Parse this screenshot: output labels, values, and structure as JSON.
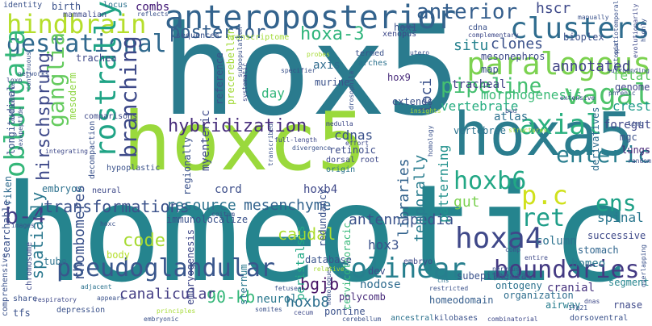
{
  "words": [
    {
      "text": "hox5",
      "color": "#2a7b8e"
    },
    {
      "text": "homeotic",
      "color": "#25848e"
    },
    {
      "text": "hoxc5",
      "color": "#9ad93c"
    },
    {
      "text": "hoxa5",
      "color": "#2b7d8e"
    },
    {
      "text": "anteroposterior",
      "color": "#33638d"
    },
    {
      "text": "paralogous",
      "color": "#7cd250"
    },
    {
      "text": "hindbrain",
      "color": "#b5de2b"
    },
    {
      "text": "clusters",
      "color": "#2f6c8e"
    },
    {
      "text": "gestational",
      "color": "#30698e"
    },
    {
      "text": "oblongata",
      "color": "#35b779"
    },
    {
      "text": "rostrally",
      "color": "#20a486"
    },
    {
      "text": "vagal",
      "color": "#4ec36b"
    },
    {
      "text": "axial",
      "color": "#2ab07f"
    },
    {
      "text": "enteric",
      "color": "#287d8e"
    },
    {
      "text": "p.c",
      "color": "#d0e11c"
    },
    {
      "text": "colinear",
      "color": "#277f8e"
    },
    {
      "text": "boundaries",
      "color": "#443a83"
    },
    {
      "text": "pseudoglandular",
      "color": "#39568c"
    },
    {
      "text": "hoxa-3",
      "color": "#2fb47c"
    },
    {
      "text": "anterior",
      "color": "#355f8d"
    },
    {
      "text": "posterior",
      "color": "#355f8d"
    },
    {
      "text": "hoxa4",
      "color": "#3f4889"
    },
    {
      "text": "ganglia",
      "color": "#65cb5e"
    },
    {
      "text": "branching",
      "color": "#3e4a89"
    },
    {
      "text": "hoxb6",
      "color": "#22a785"
    },
    {
      "text": "pipeline",
      "color": "#44bf70"
    },
    {
      "text": "ens",
      "color": "#1fa187"
    },
    {
      "text": "ret",
      "color": "#1f9e89"
    },
    {
      "text": "b-4",
      "color": "#433e85"
    },
    {
      "text": "transformations",
      "color": "#3b528b"
    },
    {
      "text": "mesenchyme",
      "color": "#33638d"
    },
    {
      "text": "antennapedia",
      "color": "#3b528b"
    },
    {
      "text": "resource",
      "color": "#2c728e"
    },
    {
      "text": "hybridization",
      "color": "#472d7b"
    },
    {
      "text": "hirschsprung",
      "color": "#3e4989"
    },
    {
      "text": "caudal",
      "color": "#addc30"
    },
    {
      "text": "code",
      "color": "#a8db34"
    },
    {
      "text": "spatially",
      "color": "#2a788e"
    },
    {
      "text": "bgjb",
      "color": "#471365"
    },
    {
      "text": "90-kb",
      "color": "#35b779"
    },
    {
      "text": "canalicular",
      "color": "#433d84"
    },
    {
      "text": "rhombomeres",
      "color": "#3b528b"
    },
    {
      "text": "libraries",
      "color": "#33638d"
    },
    {
      "text": "temporally",
      "color": "#287c8e"
    },
    {
      "text": "patterning",
      "color": "#21918c"
    },
    {
      "text": "annotated",
      "color": "#414487"
    },
    {
      "text": "morphogenesis",
      "color": "#3aba76"
    },
    {
      "text": "vertebrate",
      "color": "#27ad81"
    },
    {
      "text": "crest",
      "color": "#1e9b8a"
    },
    {
      "text": "spinal",
      "color": "#2a778e"
    },
    {
      "text": "clones",
      "color": "#3b528b"
    },
    {
      "text": "situ",
      "color": "#26828e"
    },
    {
      "text": "hscr",
      "color": "#3e4989"
    },
    {
      "text": "fetal",
      "color": "#5ec962"
    },
    {
      "text": "genome",
      "color": "#414487"
    },
    {
      "text": "foregut",
      "color": "#3f4788"
    },
    {
      "text": "tracheal",
      "color": "#424086"
    },
    {
      "text": "hox9",
      "color": "#472a7a"
    },
    {
      "text": "loci",
      "color": "#3b528b"
    },
    {
      "text": "gut",
      "color": "#7ad151"
    },
    {
      "text": "hox3",
      "color": "#3b528b"
    },
    {
      "text": "column",
      "color": "#2c728e"
    },
    {
      "text": "homeo",
      "color": "#2a788e"
    },
    {
      "text": "segment",
      "color": "#25858e"
    },
    {
      "text": "embryos",
      "color": "#2d718e"
    },
    {
      "text": "riken",
      "color": "#2f6b8e"
    },
    {
      "text": "longitudinal",
      "color": "#3b528b"
    },
    {
      "text": "myenteric",
      "color": "#3e4989"
    },
    {
      "text": "day",
      "color": "#31b57b"
    },
    {
      "text": "cdnas",
      "color": "#3b528b"
    },
    {
      "text": "atlas",
      "color": "#2d708e"
    },
    {
      "text": "hoxb4",
      "color": "#3f4889"
    },
    {
      "text": "mesoderm",
      "color": "#8fd744"
    },
    {
      "text": "body",
      "color": "#b5de2b"
    },
    {
      "text": "cervicothoracic",
      "color": "#37b878"
    },
    {
      "text": "hoxb8",
      "color": "#2e6f8e"
    },
    {
      "text": "neurol",
      "color": "#2a788e"
    },
    {
      "text": "pontine",
      "color": "#3b528b"
    },
    {
      "text": "stomach",
      "color": "#31668e"
    },
    {
      "text": "cranial",
      "color": "#46327e"
    },
    {
      "text": "airway",
      "color": "#287d8e"
    },
    {
      "text": "rnase",
      "color": "#3e4989"
    },
    {
      "text": "lungs",
      "color": "#482677"
    },
    {
      "text": "mgc",
      "color": "#3b528b"
    },
    {
      "text": "nodose",
      "color": "#2f6b8e"
    },
    {
      "text": "dev",
      "color": "#3d4e8a"
    },
    {
      "text": "successive",
      "color": "#3e4989"
    },
    {
      "text": "ontogeny",
      "color": "#2c728e"
    },
    {
      "text": "polycomb",
      "color": "#472a7a"
    },
    {
      "text": "homeodomain",
      "color": "#355e8d"
    },
    {
      "text": "organization",
      "color": "#2e6e8e"
    },
    {
      "text": "sternum",
      "color": "#2a788e"
    },
    {
      "text": "peristalsis",
      "color": "#22a884"
    },
    {
      "text": "redundancy",
      "color": "#3b528b"
    },
    {
      "text": "database",
      "color": "#3a548c"
    },
    {
      "text": "immunolocalize",
      "color": "#3b528b"
    },
    {
      "text": "embryogenesis",
      "color": "#3f4889"
    },
    {
      "text": "vertebrae",
      "color": "#2c728e"
    },
    {
      "text": "extends",
      "color": "#3b528b"
    },
    {
      "text": "retinoic",
      "color": "#3d4d8a"
    },
    {
      "text": "dorsal",
      "color": "#3e4989"
    },
    {
      "text": "root",
      "color": "#3e4989"
    },
    {
      "text": "origin",
      "color": "#2c738e"
    },
    {
      "text": "regionally",
      "color": "#3b528b"
    },
    {
      "text": "cord",
      "color": "#3d4e8a"
    },
    {
      "text": "murine",
      "color": "#3b528b"
    },
    {
      "text": "axis",
      "color": "#2f6b8e"
    },
    {
      "text": "reference",
      "color": "#3b528b"
    },
    {
      "text": "precerebellar",
      "color": "#a2da37"
    },
    {
      "text": "mesonephros",
      "color": "#3e4989"
    },
    {
      "text": "map",
      "color": "#3b528b"
    },
    {
      "text": "derivatives",
      "color": "#2e6d8e"
    },
    {
      "text": "bioplex",
      "color": "#3b528b"
    },
    {
      "text": "xenopus",
      "color": "#3e4989"
    },
    {
      "text": "hox1",
      "color": "#3b528b"
    },
    {
      "text": "transcriptome",
      "color": "#a2da37"
    },
    {
      "text": "sequences",
      "color": "#3b528b"
    },
    {
      "text": "combs",
      "color": "#3b0f70"
    },
    {
      "text": "birth",
      "color": "#3b528b"
    },
    {
      "text": "locus",
      "color": "#2c728e"
    },
    {
      "text": "mammalian",
      "color": "#3e4989"
    },
    {
      "text": "identity",
      "color": "#3b528b"
    },
    {
      "text": "trachea",
      "color": "#3e4989"
    },
    {
      "text": "termed",
      "color": "#3b528b"
    },
    {
      "text": "arches",
      "color": "#2c728e"
    },
    {
      "text": "probes",
      "color": "#a6db35"
    },
    {
      "text": "cdna",
      "color": "#3b528b"
    },
    {
      "text": "complementary",
      "color": "#3e4989"
    },
    {
      "text": "manually",
      "color": "#3b528b"
    },
    {
      "text": "evolutionarily",
      "color": "#3e4989"
    },
    {
      "text": "reflects",
      "color": "#3b528b"
    },
    {
      "text": "utero",
      "color": "#3b528b"
    },
    {
      "text": "ectopic",
      "color": "#3b528b"
    },
    {
      "text": "comparisons",
      "color": "#3e4989"
    },
    {
      "text": "decompaction",
      "color": "#3b528b"
    },
    {
      "text": "hypoplastic",
      "color": "#3b528b"
    },
    {
      "text": "networks",
      "color": "#3b528b"
    },
    {
      "text": "loxp",
      "color": "#3e4989"
    },
    {
      "text": "hexapeptide",
      "color": "#3b528b"
    },
    {
      "text": "searchable",
      "color": "#3b528b"
    },
    {
      "text": "chromosome",
      "color": "#3e4989"
    },
    {
      "text": "comprehensive",
      "color": "#3b528b"
    },
    {
      "text": "tube",
      "color": "#2c728e"
    },
    {
      "text": "share",
      "color": "#3b528b"
    },
    {
      "text": "respiratory",
      "color": "#3e4989"
    },
    {
      "text": "tfs",
      "color": "#3b528b"
    },
    {
      "text": "images",
      "color": "#3b528b"
    },
    {
      "text": "hoxc",
      "color": "#3b528b"
    },
    {
      "text": "neural",
      "color": "#3e4989"
    },
    {
      "text": "adjacent",
      "color": "#2c728e"
    },
    {
      "text": "appears",
      "color": "#3b528b"
    },
    {
      "text": "depression",
      "color": "#3b528b"
    },
    {
      "text": "principles",
      "color": "#a6db35"
    },
    {
      "text": "somites",
      "color": "#3b528b"
    },
    {
      "text": "embryonic",
      "color": "#3b528b"
    },
    {
      "text": "cecum",
      "color": "#3e4989"
    },
    {
      "text": "cerebellum",
      "color": "#3b528b"
    },
    {
      "text": "ancestral",
      "color": "#2c728e"
    },
    {
      "text": "kilobases",
      "color": "#3b528b"
    },
    {
      "text": "combinatorial",
      "color": "#3e4989"
    },
    {
      "text": "dorsoventral",
      "color": "#3b528b"
    },
    {
      "text": "17q21",
      "color": "#3b528b"
    },
    {
      "text": "dnas",
      "color": "#3e4989"
    },
    {
      "text": "overlapping",
      "color": "#3b528b"
    },
    {
      "text": "subepithelial",
      "color": "#3b528b"
    },
    {
      "text": "embryo",
      "color": "#3e4989"
    },
    {
      "text": "restricted",
      "color": "#3b528b"
    },
    {
      "text": "cns",
      "color": "#2c728e"
    },
    {
      "text": "homologues",
      "color": "#3b528b"
    },
    {
      "text": "fetuses",
      "color": "#3b528b"
    },
    {
      "text": "relative",
      "color": "#a6db35"
    },
    {
      "text": "coitum",
      "color": "#3b528b"
    },
    {
      "text": "medulla",
      "color": "#3e4989"
    },
    {
      "text": "homology",
      "color": "#3b528b"
    },
    {
      "text": "transcribed",
      "color": "#3b528b"
    },
    {
      "text": "full-length",
      "color": "#3e4989"
    },
    {
      "text": "divergence",
      "color": "#3b528b"
    },
    {
      "text": "drosophila",
      "color": "#3b528b"
    },
    {
      "text": "insights",
      "color": "#a6db35"
    },
    {
      "text": "specifier",
      "color": "#3b528b"
    },
    {
      "text": "systematic",
      "color": "#3e4989"
    },
    {
      "text": "subpopulation",
      "color": "#3b528b"
    },
    {
      "text": "spatiotemporal",
      "color": "#3b528b"
    },
    {
      "text": "effort",
      "color": "#3e4989"
    },
    {
      "text": "projects",
      "color": "#3b528b"
    },
    {
      "text": "nervous",
      "color": "#3b528b"
    },
    {
      "text": "entire",
      "color": "#3e4989"
    },
    {
      "text": "comp",
      "color": "#3b528b"
    },
    {
      "text": "structures",
      "color": "#a6db35"
    },
    {
      "text": "bud",
      "color": "#3b528b"
    },
    {
      "text": "extensive",
      "color": "#3e4989"
    },
    {
      "text": "surrounding",
      "color": "#3b528b"
    },
    {
      "text": "phrenic",
      "color": "#3b528b"
    },
    {
      "text": "random",
      "color": "#3e4989"
    },
    {
      "text": "limb",
      "color": "#3b528b"
    },
    {
      "text": "highly",
      "color": "#3b528b"
    },
    {
      "text": "integrating",
      "color": "#3e4989"
    },
    {
      "text": "definitive",
      "color": "#3b528b"
    },
    {
      "text": "continuous",
      "color": "#3b528b"
    }
  ]
}
